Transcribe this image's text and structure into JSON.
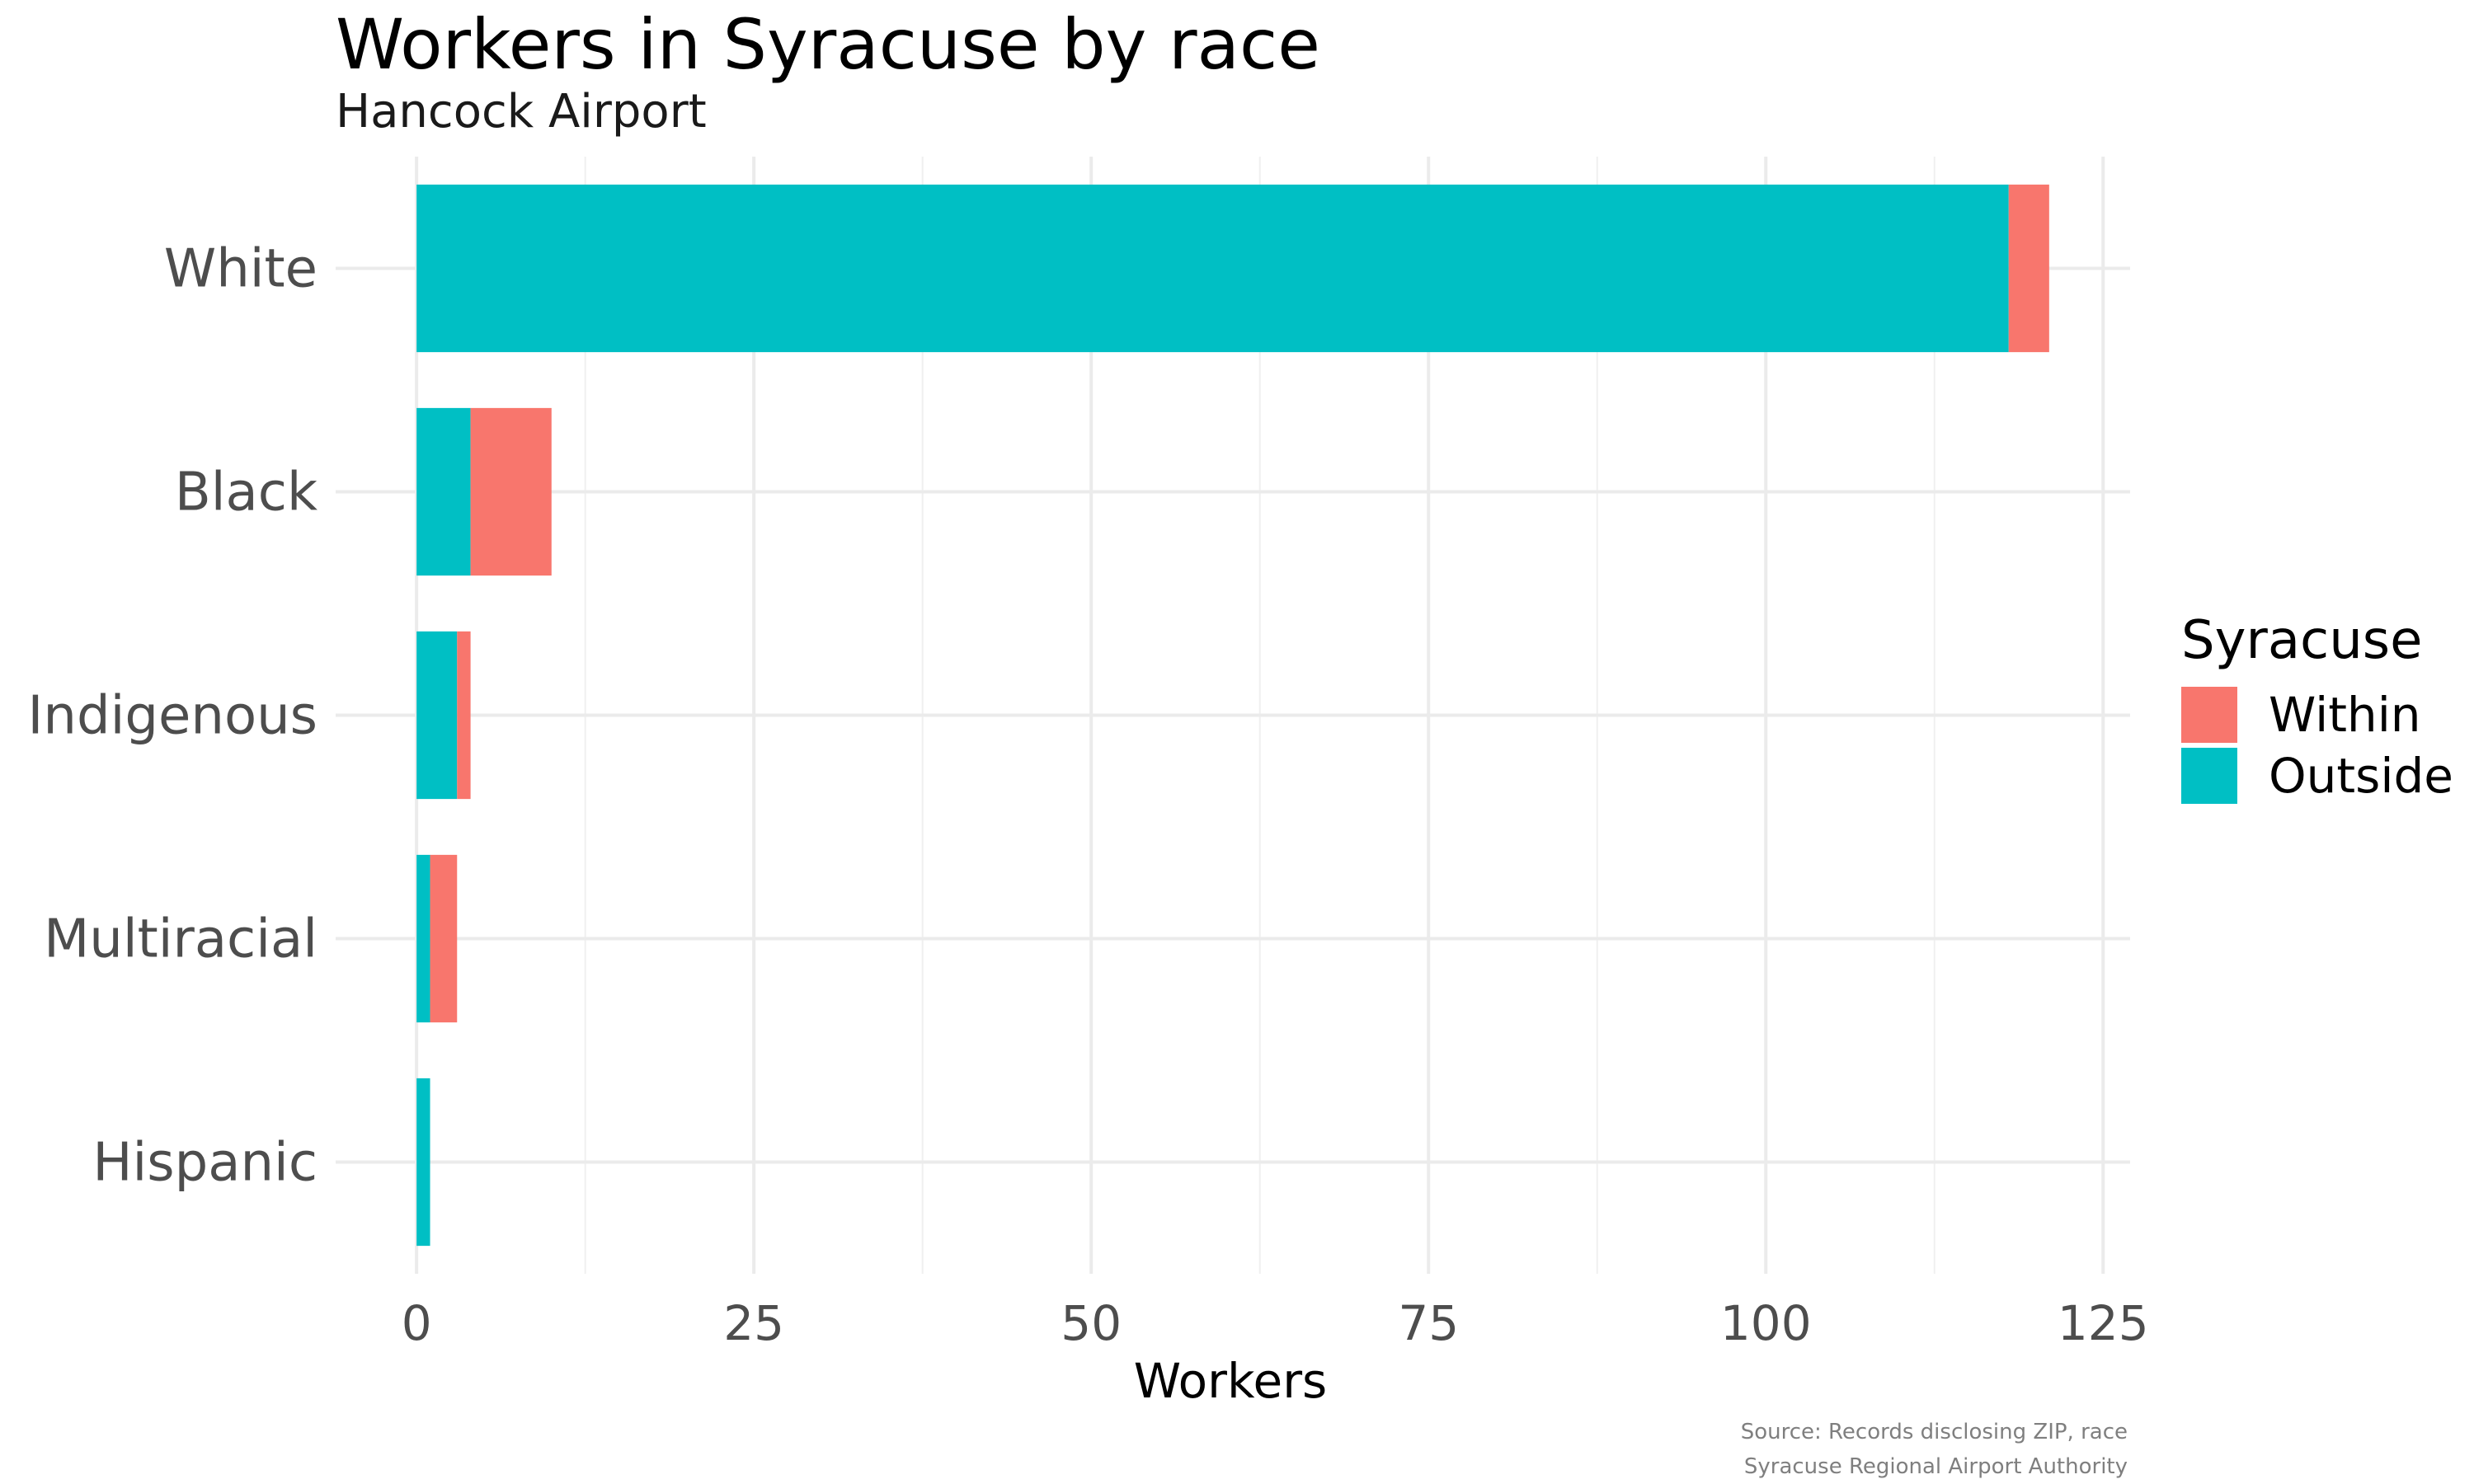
{
  "title": "Workers in Syracuse by race",
  "subtitle": "Hancock Airport",
  "caption": [
    "Source: Records disclosing ZIP, race",
    "Syracuse Regional Airport Authority"
  ],
  "legend": {
    "title": "Syracuse",
    "position": "right",
    "items": [
      {
        "label": "Within",
        "color": "#F8766D"
      },
      {
        "label": "Outside",
        "color": "#00BFC4"
      }
    ]
  },
  "chart_data": {
    "type": "bar",
    "orientation": "horizontal",
    "stacked": true,
    "categories": [
      "White",
      "Black",
      "Indigenous",
      "Multiracial",
      "Hispanic"
    ],
    "series": [
      {
        "name": "Outside",
        "color": "#00BFC4",
        "values": [
          118,
          4,
          3,
          1,
          1
        ]
      },
      {
        "name": "Within",
        "color": "#F8766D",
        "values": [
          3,
          6,
          1,
          2,
          0
        ]
      }
    ],
    "xlabel": "Workers",
    "ylabel": "",
    "xlim": [
      -6,
      127
    ],
    "xticks": [
      0,
      25,
      50,
      75,
      100,
      125
    ],
    "grid": true
  }
}
